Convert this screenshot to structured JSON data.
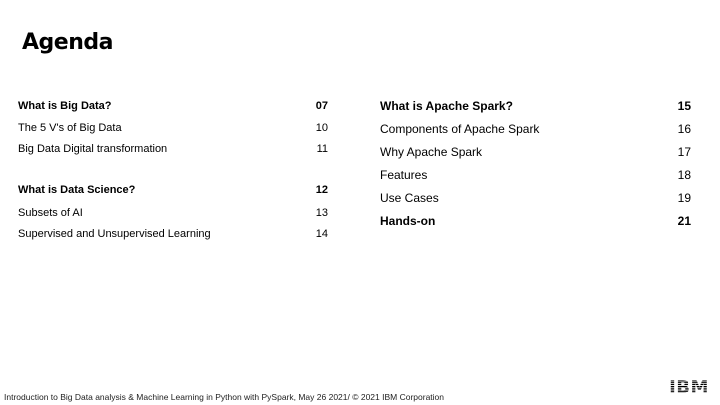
{
  "slide": {
    "title": "Agenda",
    "left_column": [
      {
        "label": "What is Big Data?",
        "page": "07",
        "bold": true
      },
      {
        "label": "The 5 V's of Big Data",
        "page": "10",
        "bold": false
      },
      {
        "label": "Big Data Digital transformation",
        "page": "11",
        "bold": false
      },
      {
        "label": "What is Data Science?",
        "page": "12",
        "bold": true
      },
      {
        "label": "Subsets of AI",
        "page": "13",
        "bold": false
      },
      {
        "label": "Supervised and Unsupervised Learning",
        "page": "14",
        "bold": false
      }
    ],
    "right_column": [
      {
        "label": "What is Apache Spark?",
        "page": "15",
        "bold": true
      },
      {
        "label": "Components of Apache Spark",
        "page": "16",
        "bold": false
      },
      {
        "label": "Why Apache Spark",
        "page": "17",
        "bold": false
      },
      {
        "label": "Features",
        "page": "18",
        "bold": false
      },
      {
        "label": "Use Cases",
        "page": "19",
        "bold": false
      },
      {
        "label": "Hands-on",
        "page": "21",
        "bold": true
      }
    ],
    "footer": "Introduction to Big Data analysis & Machine Learning in Python with PySpark, May 26 2021/ © 2021 IBM Corporation",
    "logo_text": "IBM"
  }
}
